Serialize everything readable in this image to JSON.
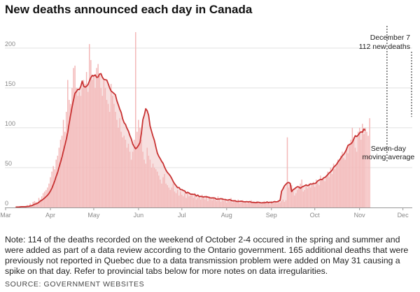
{
  "title": "New deaths announced each day in Canada",
  "note": "Note: 114 of the deaths recorded on the weekend of October 2-4 occured in the spring and summer and were added as part of a data review according to the Ontario government. 165 additional deaths that were previously not reported in Quebec due to a data transmission problem were added on May 31 causing a spike on that day. Refer to provincial tabs below for more notes on data irregularities.",
  "source": "SOURCE: GOVERNMENT WEBSITES",
  "chart_data": {
    "type": "bar",
    "title": "New deaths announced each day in Canada",
    "x_range": [
      "2020-03-01",
      "2020-12-07"
    ],
    "ylim": [
      0,
      220
    ],
    "yticks": [
      "0",
      "50",
      "100",
      "150",
      "200"
    ],
    "xticks": [
      "Mar",
      "Apr",
      "May",
      "Jun",
      "Jul",
      "Aug",
      "Sep",
      "Oct",
      "Nov",
      "Dec"
    ],
    "grid": true,
    "series": [
      {
        "type": "bar",
        "start": "2020-03-08",
        "values": [
          1,
          0,
          1,
          0,
          1,
          1,
          1,
          2,
          3,
          1,
          5,
          3,
          7,
          8,
          7,
          6,
          12,
          10,
          14,
          18,
          20,
          22,
          25,
          30,
          38,
          45,
          52,
          48,
          60,
          65,
          75,
          85,
          90,
          110,
          95,
          120,
          160,
          135,
          130,
          150,
          175,
          178,
          150,
          140,
          145,
          140,
          150,
          160,
          155,
          170,
          145,
          205,
          185,
          160,
          165,
          150,
          175,
          180,
          165,
          150,
          140,
          160,
          150,
          135,
          130,
          120,
          155,
          140,
          130,
          120,
          110,
          100,
          112,
          95,
          88,
          90,
          85,
          75,
          80,
          70,
          60,
          70,
          85,
          220,
          95,
          110,
          100,
          85,
          70,
          60,
          55,
          75,
          65,
          60,
          50,
          55,
          50,
          48,
          45,
          40,
          35,
          30,
          38,
          42,
          30,
          28,
          25,
          22,
          25,
          30,
          20,
          18,
          22,
          15,
          20,
          16,
          14,
          18,
          12,
          20,
          14,
          15,
          16,
          12,
          18,
          10,
          12,
          14,
          10,
          16,
          12,
          10,
          15,
          8,
          14,
          10,
          9,
          12,
          10,
          8,
          14,
          10,
          7,
          12,
          8,
          11,
          6,
          10,
          8,
          12,
          6,
          8,
          9,
          6,
          10,
          5,
          7,
          9,
          6,
          8,
          5,
          8,
          6,
          9,
          5,
          7,
          6,
          8,
          5,
          7,
          4,
          6,
          8,
          5,
          7,
          6,
          4,
          8,
          5,
          6,
          7,
          5,
          9,
          6,
          8,
          10,
          7,
          9,
          88,
          25,
          30,
          28,
          20,
          15,
          18,
          22,
          25,
          30,
          35,
          20,
          22,
          28,
          24,
          30,
          25,
          28,
          32,
          26,
          35,
          30,
          28,
          40,
          35,
          38,
          33,
          40,
          45,
          38,
          50,
          42,
          55,
          48,
          52,
          60,
          58,
          65,
          70,
          62,
          60,
          75,
          68,
          80,
          85,
          100,
          88,
          75,
          70,
          95,
          100,
          85,
          105,
          92,
          100,
          95,
          90,
          112
        ]
      },
      {
        "type": "line",
        "name": "Seven-day moving average",
        "start": "2020-03-08",
        "values": [
          0.5,
          0.5,
          0.5,
          0.8,
          1,
          1,
          1,
          1,
          1.3,
          1.4,
          2,
          2.3,
          3,
          4,
          4.5,
          5.3,
          6.4,
          7.9,
          9.1,
          10.3,
          11.9,
          13.6,
          15.3,
          17.6,
          20.6,
          24,
          28.6,
          33.4,
          39.1,
          44,
          50.6,
          56.7,
          63.1,
          70.6,
          77.9,
          85.3,
          94,
          105.6,
          116,
          126.1,
          135,
          143.3,
          145.4,
          148.3,
          147.9,
          151.7,
          158.6,
          152.3,
          150.9,
          152.1,
          154.1,
          158.6,
          162.9,
          165.7,
          165,
          166.4,
          163.3,
          163.6,
          167.4,
          167.9,
          163.3,
          160.7,
          160.3,
          159.9,
          155.3,
          150.1,
          146.2,
          144.7,
          143.1,
          141.4,
          133.9,
          128.9,
          123.4,
          119.2,
          111.4,
          106.4,
          104.1,
          99.3,
          95.8,
          90.3,
          85.9,
          79.6,
          76.4,
          73.6,
          75.3,
          77.9,
          81.4,
          93.4,
          110.1,
          116,
          123.9,
          121.4,
          115.5,
          102.2,
          95.7,
          89.4,
          84,
          75.9,
          68.4,
          64.3,
          61.3,
          57.9,
          55.4,
          50.7,
          46.9,
          43.9,
          41.9,
          39.6,
          36.4,
          32.6,
          29.6,
          27.3,
          24.9,
          25.1,
          22.6,
          22.4,
          21.3,
          20.7,
          18.1,
          19,
          18.1,
          16.7,
          16.7,
          16.4,
          16.4,
          14.4,
          15.6,
          13.7,
          13.9,
          13.6,
          13.1,
          13.6,
          13.3,
          13.1,
          12.3,
          11.9,
          12,
          12,
          11.7,
          10.3,
          10.6,
          10.7,
          11.1,
          10.6,
          10.1,
          10,
          9.4,
          9.3,
          9.9,
          9.1,
          8.3,
          8.4,
          8.4,
          7.4,
          7.7,
          7.6,
          8,
          7.6,
          7.1,
          7.1,
          7.3,
          6.9,
          7.4,
          6.6,
          6.3,
          6.4,
          6,
          6.3,
          6.6,
          6.1,
          5.7,
          6,
          5.9,
          6.1,
          6.9,
          6.1,
          6.6,
          6.3,
          6.6,
          7.4,
          7.1,
          7.1,
          8.1,
          8.9,
          20.3,
          23.4,
          27.1,
          29.1,
          30.9,
          31.4,
          30.1,
          19.9,
          22.3,
          23.4,
          25,
          26.1,
          25.7,
          24.1,
          25.6,
          26.4,
          27.3,
          28.4,
          27.3,
          28.1,
          29.7,
          29.3,
          30,
          30.1,
          30.9,
          33.3,
          34.3,
          35.3,
          34.9,
          37,
          37.7,
          39.3,
          41.3,
          43.4,
          44.9,
          46.9,
          50.3,
          52.1,
          53.9,
          56.9,
          59.3,
          61.9,
          64.7,
          66.6,
          69.4,
          73.1,
          77.9,
          79,
          79.9,
          81.9,
          85.9,
          90,
          89,
          90.7,
          93.4,
          94.9,
          94.4,
          98.4,
          96.6
        ]
      }
    ],
    "annotations": [
      {
        "text": "December 7",
        "date": "2020-12-07",
        "value": 112
      },
      {
        "text": "112 new deaths",
        "date": "2020-12-07",
        "value": 112
      },
      {
        "text": "Seven-day",
        "series": "Seven-day moving average"
      },
      {
        "text": "moving average",
        "series": "Seven-day moving average"
      }
    ],
    "colors": {
      "bars": "#f3b8b8",
      "line": "#c83232",
      "area": "#f0c7c7",
      "grid": "#e0e0e0"
    }
  }
}
